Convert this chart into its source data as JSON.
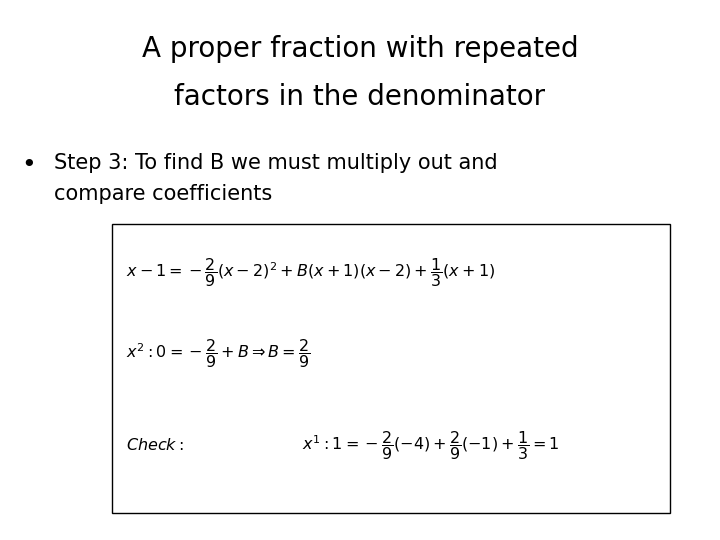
{
  "title_line1": "A proper fraction with repeated",
  "title_line2": "factors in the denominator",
  "bullet_text_line1": "Step 3: To find B we must multiply out and",
  "bullet_text_line2": "compare coefficients",
  "bg_color": "#ffffff",
  "box_color": "#000000",
  "title_fontsize": 20,
  "bullet_fontsize": 15,
  "math_fontsize": 11.5
}
